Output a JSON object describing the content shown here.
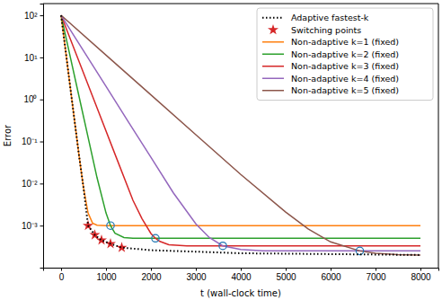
{
  "chart_data": {
    "type": "line",
    "x_label": "t (wall-clock time)",
    "y_label": "Error",
    "log": "y",
    "legend": "upper-right",
    "xlim": [
      -400,
      8400
    ],
    "xticks": [
      0,
      1000,
      2000,
      3000,
      4000,
      5000,
      6000,
      7000,
      8000
    ],
    "ylim": [
      0.0001,
      190
    ],
    "yticks": [
      {
        "value": 0.001,
        "label": "10⁻³"
      },
      {
        "value": 0.01,
        "label": "10⁻²"
      },
      {
        "value": 0.1,
        "label": "10⁻¹"
      },
      {
        "value": 1,
        "label": "10⁰"
      },
      {
        "value": 10,
        "label": "10¹"
      },
      {
        "value": 100,
        "label": "10²"
      }
    ],
    "series": [
      {
        "name": "Adaptive fastest-k",
        "type": "line",
        "color": "#000000",
        "line_style": "dotted",
        "x": [
          0,
          100,
          200,
          300,
          400,
          500,
          600,
          750,
          900,
          1100,
          1350,
          2000,
          3000,
          4000,
          6000,
          8000
        ],
        "values": [
          100,
          14.6,
          2.1,
          0.31,
          0.046,
          0.0078,
          0.001,
          0.0006,
          0.00045,
          0.00037,
          0.0003,
          0.00026,
          0.00024,
          0.00022,
          0.00021,
          0.0002
        ]
      },
      {
        "name": "Switching points",
        "type": "scatter",
        "color": "#d62728",
        "marker": "star",
        "x": [
          600,
          750,
          900,
          1100,
          1350
        ],
        "values": [
          0.001,
          0.0006,
          0.00045,
          0.00037,
          0.0003
        ]
      },
      {
        "name": "Non-adaptive k=1 (fixed)",
        "type": "line",
        "color": "#ff7f0e",
        "line_style": "solid",
        "x": [
          0,
          100,
          200,
          300,
          400,
          500,
          600,
          700,
          800,
          1000,
          8000
        ],
        "values": [
          100,
          14.6,
          2.1,
          0.31,
          0.046,
          0.0078,
          0.002,
          0.00115,
          0.00102,
          0.001,
          0.001
        ]
      },
      {
        "name": "Non-adaptive k=2 (fixed)",
        "type": "line",
        "color": "#2ca02c",
        "line_style": "solid",
        "x": [
          0,
          200,
          400,
          600,
          800,
          1000,
          1100,
          1200,
          1400,
          1600,
          8000
        ],
        "values": [
          100,
          10.8,
          1.17,
          0.127,
          0.0138,
          0.002,
          0.001,
          0.00066,
          0.00052,
          0.0005,
          0.0005
        ]
      },
      {
        "name": "Non-adaptive k=3 (fixed)",
        "type": "line",
        "color": "#d62728",
        "line_style": "solid",
        "x": [
          0,
          400,
          800,
          1200,
          1600,
          1800,
          2000,
          2100,
          2200,
          2400,
          2800,
          8000
        ],
        "values": [
          100,
          7.96,
          0.63,
          0.05,
          0.004,
          0.00147,
          0.00065,
          0.0005,
          0.00042,
          0.00035,
          0.00033,
          0.00033
        ]
      },
      {
        "name": "Non-adaptive k=4 (fixed)",
        "type": "line",
        "color": "#9467bd",
        "line_style": "solid",
        "x": [
          0,
          500,
          1000,
          1500,
          2000,
          2500,
          3000,
          3300,
          3600,
          4000,
          4500,
          8000
        ],
        "values": [
          100,
          14.3,
          2.04,
          0.29,
          0.042,
          0.006,
          0.0011,
          0.00052,
          0.00033,
          0.00027,
          0.00025,
          0.00025
        ]
      },
      {
        "name": "Non-adaptive k=5 (fixed)",
        "type": "line",
        "color": "#8c564b",
        "line_style": "solid",
        "x": [
          0,
          1000,
          2000,
          3000,
          4000,
          5000,
          5500,
          6000,
          6650,
          7000,
          7500,
          8000
        ],
        "values": [
          100,
          11.3,
          1.28,
          0.145,
          0.0164,
          0.0021,
          0.00083,
          0.00041,
          0.00025,
          0.00022,
          0.000205,
          0.0002
        ]
      },
      {
        "type": "scatter",
        "color": "#1f77b4",
        "marker": "circle",
        "x": [
          1100,
          2100,
          3600,
          6650
        ],
        "values": [
          0.001,
          0.0005,
          0.00033,
          0.00025
        ]
      }
    ]
  }
}
